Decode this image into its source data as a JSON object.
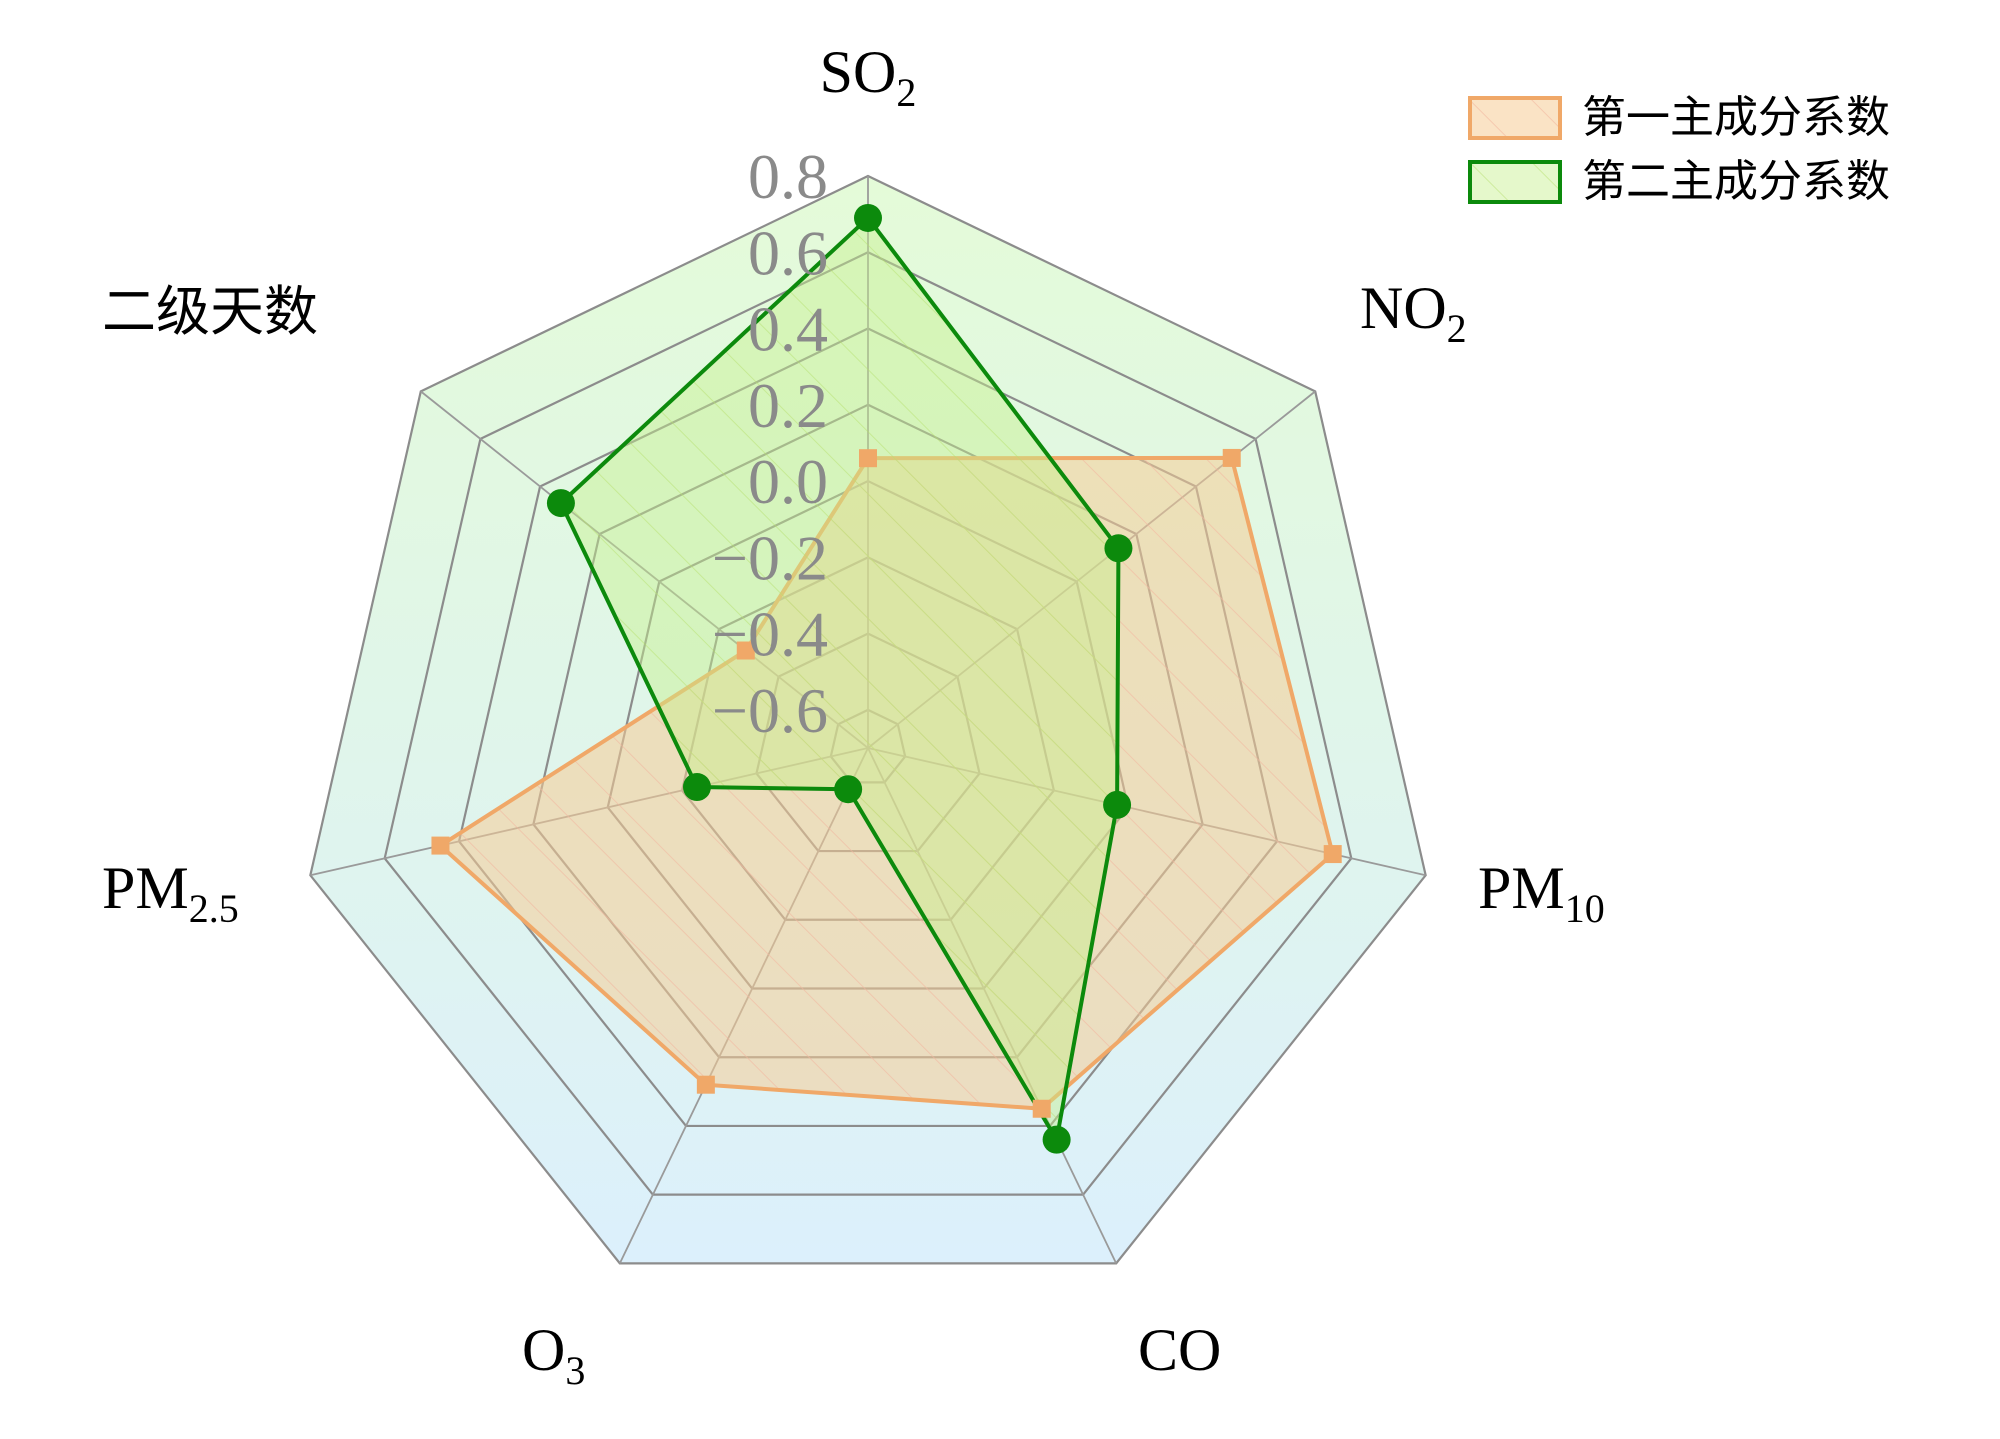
{
  "chart_data": {
    "type": "radar",
    "axes": [
      {
        "label": "SO",
        "sub": "2"
      },
      {
        "label": "NO",
        "sub": "2"
      },
      {
        "label": "PM",
        "sub": "10"
      },
      {
        "label": "CO",
        "sub": ""
      },
      {
        "label": "O",
        "sub": "3"
      },
      {
        "label": "PM",
        "sub": "2.5"
      },
      {
        "label": "二级天数",
        "sub": ""
      }
    ],
    "rlim": [
      -0.7,
      0.8
    ],
    "ticks": [
      "0.8",
      "0.6",
      "0.4",
      "0.2",
      "0.0",
      "−0.2",
      "−0.4",
      "−0.6"
    ],
    "tick_values": [
      0.8,
      0.6,
      0.4,
      0.2,
      0.0,
      -0.2,
      -0.4,
      -0.6
    ],
    "series": [
      {
        "name": "第一主成分系数",
        "color": "#f0a868",
        "fill": "#f5d0a0",
        "marker": "square",
        "values": [
          0.06,
          0.52,
          0.55,
          0.35,
          0.28,
          0.45,
          -0.29
        ]
      },
      {
        "name": "第二主成分系数",
        "color": "#0c8a0c",
        "fill": "#c8f0a8",
        "marker": "circle",
        "values": [
          0.69,
          0.14,
          -0.03,
          0.44,
          -0.58,
          -0.24,
          0.33
        ]
      }
    ],
    "legend_position": "top-right",
    "grid": true
  }
}
